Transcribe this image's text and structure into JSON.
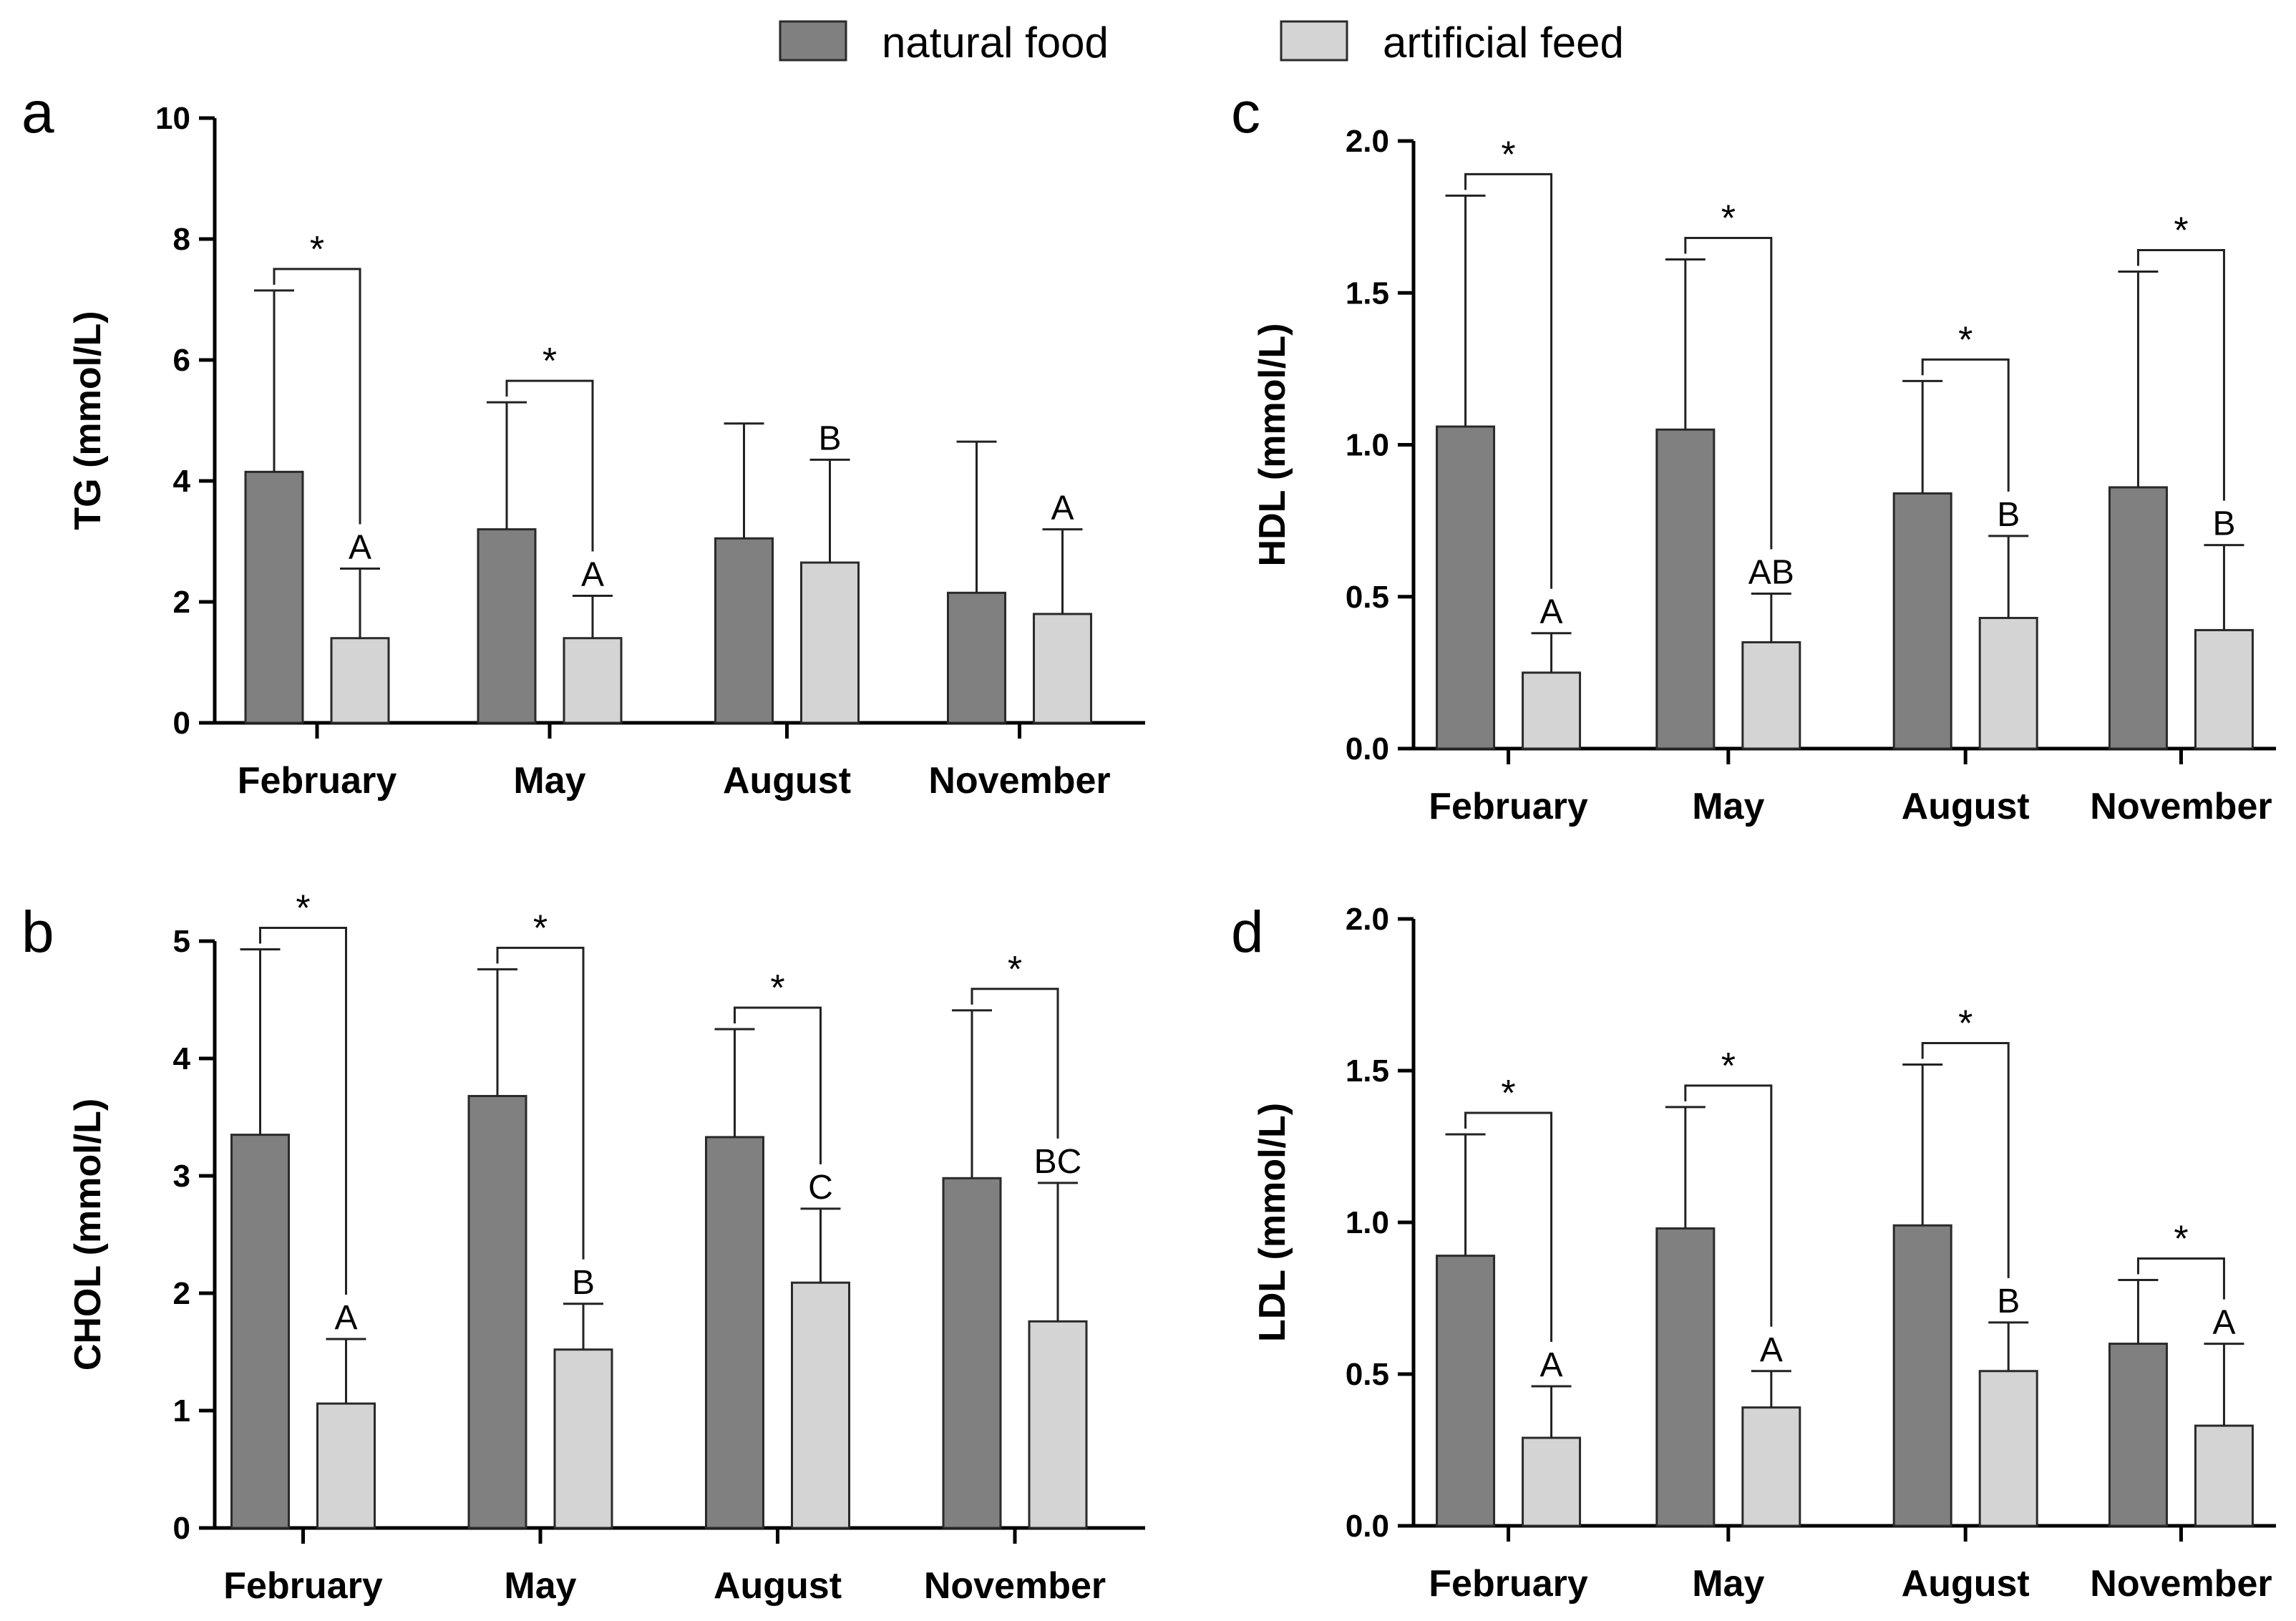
{
  "legend": {
    "natural_label": "natural food",
    "artificial_label": "artificial feed"
  },
  "colors": {
    "natural": "#808080",
    "artificial": "#d4d4d4"
  },
  "chart_data": [
    {
      "panel": "a",
      "type": "bar",
      "ylabel": "TG (mmol/L)",
      "categories": [
        "February",
        "May",
        "August",
        "November"
      ],
      "ylim": [
        0,
        10
      ],
      "yticks": [
        "0",
        "2",
        "4",
        "6",
        "8",
        "10"
      ],
      "series": [
        {
          "name": "natural food",
          "values": [
            4.15,
            3.2,
            3.05,
            2.15
          ],
          "errors": [
            3.0,
            2.1,
            1.9,
            2.5
          ]
        },
        {
          "name": "artificial feed",
          "values": [
            1.4,
            1.4,
            2.65,
            1.8
          ],
          "errors": [
            1.15,
            0.7,
            1.7,
            1.4
          ]
        }
      ],
      "group_letters": [
        "A",
        "A",
        "B",
        "A"
      ],
      "significance": [
        "*",
        "*",
        "",
        ""
      ]
    },
    {
      "panel": "b",
      "type": "bar",
      "ylabel": "CHOL (mmol/L)",
      "categories": [
        "February",
        "May",
        "August",
        "November"
      ],
      "ylim": [
        0,
        5
      ],
      "yticks": [
        "0",
        "1",
        "2",
        "3",
        "4",
        "5"
      ],
      "series": [
        {
          "name": "natural food",
          "values": [
            3.35,
            3.68,
            3.33,
            2.98
          ],
          "errors": [
            1.58,
            1.08,
            0.92,
            1.43
          ]
        },
        {
          "name": "artificial feed",
          "values": [
            1.06,
            1.52,
            2.09,
            1.76
          ],
          "errors": [
            0.55,
            0.39,
            0.63,
            1.18
          ]
        }
      ],
      "group_letters": [
        "A",
        "B",
        "C",
        "BC"
      ],
      "significance": [
        "*",
        "*",
        "*",
        "*"
      ]
    },
    {
      "panel": "c",
      "type": "bar",
      "ylabel": "HDL (mmol/L)",
      "categories": [
        "February",
        "May",
        "August",
        "November"
      ],
      "ylim": [
        0,
        2.0
      ],
      "yticks": [
        "0.0",
        "0.5",
        "1.0",
        "1.5",
        "2.0"
      ],
      "series": [
        {
          "name": "natural food",
          "values": [
            1.06,
            1.05,
            0.84,
            0.86
          ],
          "errors": [
            0.76,
            0.56,
            0.37,
            0.71
          ]
        },
        {
          "name": "artificial feed",
          "values": [
            0.25,
            0.35,
            0.43,
            0.39
          ],
          "errors": [
            0.13,
            0.16,
            0.27,
            0.28
          ]
        }
      ],
      "group_letters": [
        "A",
        "AB",
        "B",
        "B"
      ],
      "significance": [
        "*",
        "*",
        "*",
        "*"
      ]
    },
    {
      "panel": "d",
      "type": "bar",
      "ylabel": "LDL (mmol/L)",
      "categories": [
        "February",
        "May",
        "August",
        "November"
      ],
      "ylim": [
        0,
        2.0
      ],
      "yticks": [
        "0.0",
        "0.5",
        "1.0",
        "1.5",
        "2.0"
      ],
      "series": [
        {
          "name": "natural food",
          "values": [
            0.89,
            0.98,
            0.99,
            0.6
          ],
          "errors": [
            0.4,
            0.4,
            0.53,
            0.21
          ]
        },
        {
          "name": "artificial feed",
          "values": [
            0.29,
            0.39,
            0.51,
            0.33
          ],
          "errors": [
            0.17,
            0.12,
            0.16,
            0.27
          ]
        }
      ],
      "group_letters": [
        "A",
        "A",
        "B",
        "A"
      ],
      "significance": [
        "*",
        "*",
        "*",
        "*"
      ]
    }
  ]
}
